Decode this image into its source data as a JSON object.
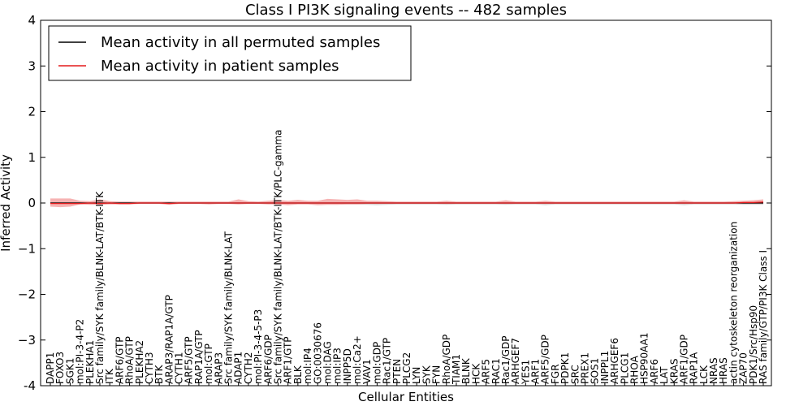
{
  "chart_data": {
    "type": "line",
    "title": "Class I PI3K signaling events -- 482 samples",
    "xlabel": "Cellular Entities",
    "ylabel": "Inferred Activity",
    "ylim": [
      -4,
      4
    ],
    "yticks": [
      "-4",
      "−3",
      "−2",
      "−1",
      "0",
      "1",
      "2",
      "3",
      "4"
    ],
    "ytick_values": [
      -4,
      -3,
      -2,
      -1,
      0,
      1,
      2,
      3,
      4
    ],
    "grid": false,
    "legend_position": "top-left",
    "series": [
      {
        "name": "Mean activity in all permuted samples",
        "color": "#000000",
        "value": 0.0,
        "band_color": "#bbbbbb"
      },
      {
        "name": "Mean activity in patient samples",
        "color": "#e41a1c",
        "value": 0.0,
        "band_color": "#f08080"
      }
    ],
    "categories": [
      "DAPP1",
      "FOXO3",
      "SGK1",
      "mol:PI-3-4-P2",
      "PLEKHA1",
      "Src family/SYK family/BLNK-LAT/BTK-ITK",
      "ITK",
      "ARF6/GTP",
      "RhoA/GTP",
      "PLEKHA2",
      "CYTH3",
      "BTK",
      "ARAP3/RAP1A/GTP",
      "CYTH1",
      "ARF5/GTP",
      "RAP1A/GTP",
      "mol:GTP",
      "ARAP3",
      "Src family/SYK family/BLNK-LAT",
      "ADAP1",
      "CYTH2",
      "mol:PI-3-4-5-P3",
      "ARF6/GDP",
      "Src family/SYK family/BLNK-LAT/BTK-ITK/PLC-gamma",
      "ARF1/GTP",
      "BLK",
      "mol:IP4",
      "GO:0030676",
      "mol:DAG",
      "mol:IP3",
      "INPP5D",
      "mol:Ca2+",
      "VAV1",
      "mol:GDP",
      "Rac1/GTP",
      "PTEN",
      "PLCG2",
      "LYN",
      "SYK",
      "FYN",
      "RhoA/GDP",
      "TIAM1",
      "BLNK",
      "HCK",
      "ARF5",
      "RAC1",
      "Rac1/GDP",
      "ARHGEF7",
      "YES1",
      "ARF1",
      "ARF5/GDP",
      "FGR",
      "PDPK1",
      "SRC",
      "PREX1",
      "SOS1",
      "INPPL1",
      "ARHGEF6",
      "PLCG1",
      "RHOA",
      "HSP90AA1",
      "ARF6",
      "LAT",
      "KRAS",
      "ARF1/GDP",
      "RAP1A",
      "LCK",
      "NRAS",
      "HRAS",
      "actin cytoskeleton reorganization",
      "ZAP70",
      "PDK1/Src/Hsp90",
      "RAS family/GTP/PI3K Class I"
    ],
    "mean_patient": [
      -0.01,
      -0.01,
      -0.01,
      -0.01,
      0.0,
      -0.01,
      0.0,
      -0.01,
      -0.01,
      0.0,
      0.0,
      0.0,
      -0.01,
      0.0,
      0.0,
      0.0,
      0.0,
      0.0,
      0.0,
      0.0,
      0.0,
      0.0,
      0.0,
      0.0,
      0.0,
      0.0,
      0.0,
      0.0,
      0.0,
      0.0,
      0.0,
      0.0,
      0.0,
      0.0,
      0.0,
      0.0,
      0.0,
      0.0,
      0.0,
      0.0,
      0.0,
      0.0,
      0.0,
      0.0,
      0.0,
      0.0,
      0.0,
      0.0,
      0.0,
      0.0,
      0.0,
      0.0,
      0.0,
      0.0,
      0.0,
      0.0,
      0.0,
      0.0,
      0.0,
      0.0,
      0.0,
      0.0,
      0.0,
      0.0,
      0.0,
      0.0,
      0.0,
      0.0,
      0.0,
      0.0,
      0.01,
      0.01,
      0.02
    ],
    "patient_band_upper": [
      0.1,
      0.1,
      0.1,
      0.05,
      0.04,
      0.08,
      0.04,
      0.03,
      0.03,
      0.03,
      0.03,
      0.03,
      0.03,
      0.03,
      0.03,
      0.03,
      0.03,
      0.03,
      0.03,
      0.08,
      0.04,
      0.03,
      0.05,
      0.07,
      0.05,
      0.07,
      0.05,
      0.05,
      0.09,
      0.08,
      0.07,
      0.08,
      0.05,
      0.05,
      0.04,
      0.03,
      0.03,
      0.03,
      0.03,
      0.03,
      0.05,
      0.03,
      0.03,
      0.03,
      0.03,
      0.03,
      0.06,
      0.03,
      0.03,
      0.03,
      0.05,
      0.03,
      0.03,
      0.03,
      0.03,
      0.03,
      0.03,
      0.03,
      0.03,
      0.03,
      0.03,
      0.03,
      0.03,
      0.03,
      0.06,
      0.03,
      0.03,
      0.03,
      0.03,
      0.04,
      0.05,
      0.06,
      0.08
    ],
    "patient_band_lower": [
      -0.08,
      -0.09,
      -0.08,
      -0.03,
      -0.04,
      -0.04,
      -0.03,
      -0.03,
      -0.03,
      -0.02,
      -0.02,
      -0.02,
      -0.04,
      -0.02,
      -0.02,
      -0.02,
      -0.03,
      -0.02,
      -0.02,
      -0.03,
      -0.02,
      -0.02,
      -0.03,
      -0.03,
      -0.05,
      -0.03,
      -0.03,
      -0.05,
      -0.04,
      -0.04,
      -0.03,
      -0.03,
      -0.02,
      -0.02,
      -0.02,
      -0.02,
      -0.02,
      -0.02,
      -0.02,
      -0.02,
      -0.02,
      -0.02,
      -0.02,
      -0.02,
      -0.02,
      -0.02,
      -0.02,
      -0.02,
      -0.02,
      -0.02,
      -0.02,
      -0.02,
      -0.02,
      -0.02,
      -0.02,
      -0.02,
      -0.02,
      -0.02,
      -0.02,
      -0.02,
      -0.02,
      -0.02,
      -0.02,
      -0.02,
      -0.02,
      -0.02,
      -0.02,
      -0.02,
      -0.02,
      -0.02,
      -0.02,
      -0.02,
      -0.02
    ],
    "permuted_band_upper": [
      0.02,
      0.02,
      0.02,
      0.02,
      0.02,
      0.02,
      0.02,
      0.02,
      0.02,
      0.02,
      0.02,
      0.02,
      0.02,
      0.02,
      0.02,
      0.02,
      0.02,
      0.02,
      0.02,
      0.02,
      0.02,
      0.02,
      0.02,
      0.02,
      0.02,
      0.02,
      0.02,
      0.02,
      0.02,
      0.02,
      0.02,
      0.02,
      0.02,
      0.02,
      0.02,
      0.02,
      0.02,
      0.02,
      0.02,
      0.02,
      0.02,
      0.02,
      0.02,
      0.02,
      0.02,
      0.02,
      0.02,
      0.02,
      0.02,
      0.02,
      0.02,
      0.02,
      0.02,
      0.02,
      0.02,
      0.02,
      0.02,
      0.02,
      0.02,
      0.02,
      0.02,
      0.02,
      0.02,
      0.02,
      0.02,
      0.02,
      0.02,
      0.02,
      0.02,
      0.02,
      0.02,
      0.02,
      0.02
    ],
    "permuted_band_lower": [
      -0.02,
      -0.02,
      -0.02,
      -0.02,
      -0.02,
      -0.02,
      -0.02,
      -0.02,
      -0.02,
      -0.02,
      -0.02,
      -0.02,
      -0.02,
      -0.02,
      -0.02,
      -0.02,
      -0.02,
      -0.02,
      -0.02,
      -0.02,
      -0.02,
      -0.02,
      -0.02,
      -0.02,
      -0.02,
      -0.02,
      -0.02,
      -0.02,
      -0.02,
      -0.02,
      -0.03,
      -0.03,
      -0.04,
      -0.05,
      -0.04,
      -0.03,
      -0.03,
      -0.03,
      -0.03,
      -0.03,
      -0.04,
      -0.03,
      -0.03,
      -0.03,
      -0.03,
      -0.03,
      -0.04,
      -0.03,
      -0.03,
      -0.03,
      -0.05,
      -0.03,
      -0.03,
      -0.03,
      -0.03,
      -0.03,
      -0.03,
      -0.03,
      -0.03,
      -0.03,
      -0.03,
      -0.03,
      -0.03,
      -0.03,
      -0.05,
      -0.03,
      -0.03,
      -0.03,
      -0.03,
      -0.03,
      -0.04,
      -0.04,
      -0.04
    ]
  }
}
